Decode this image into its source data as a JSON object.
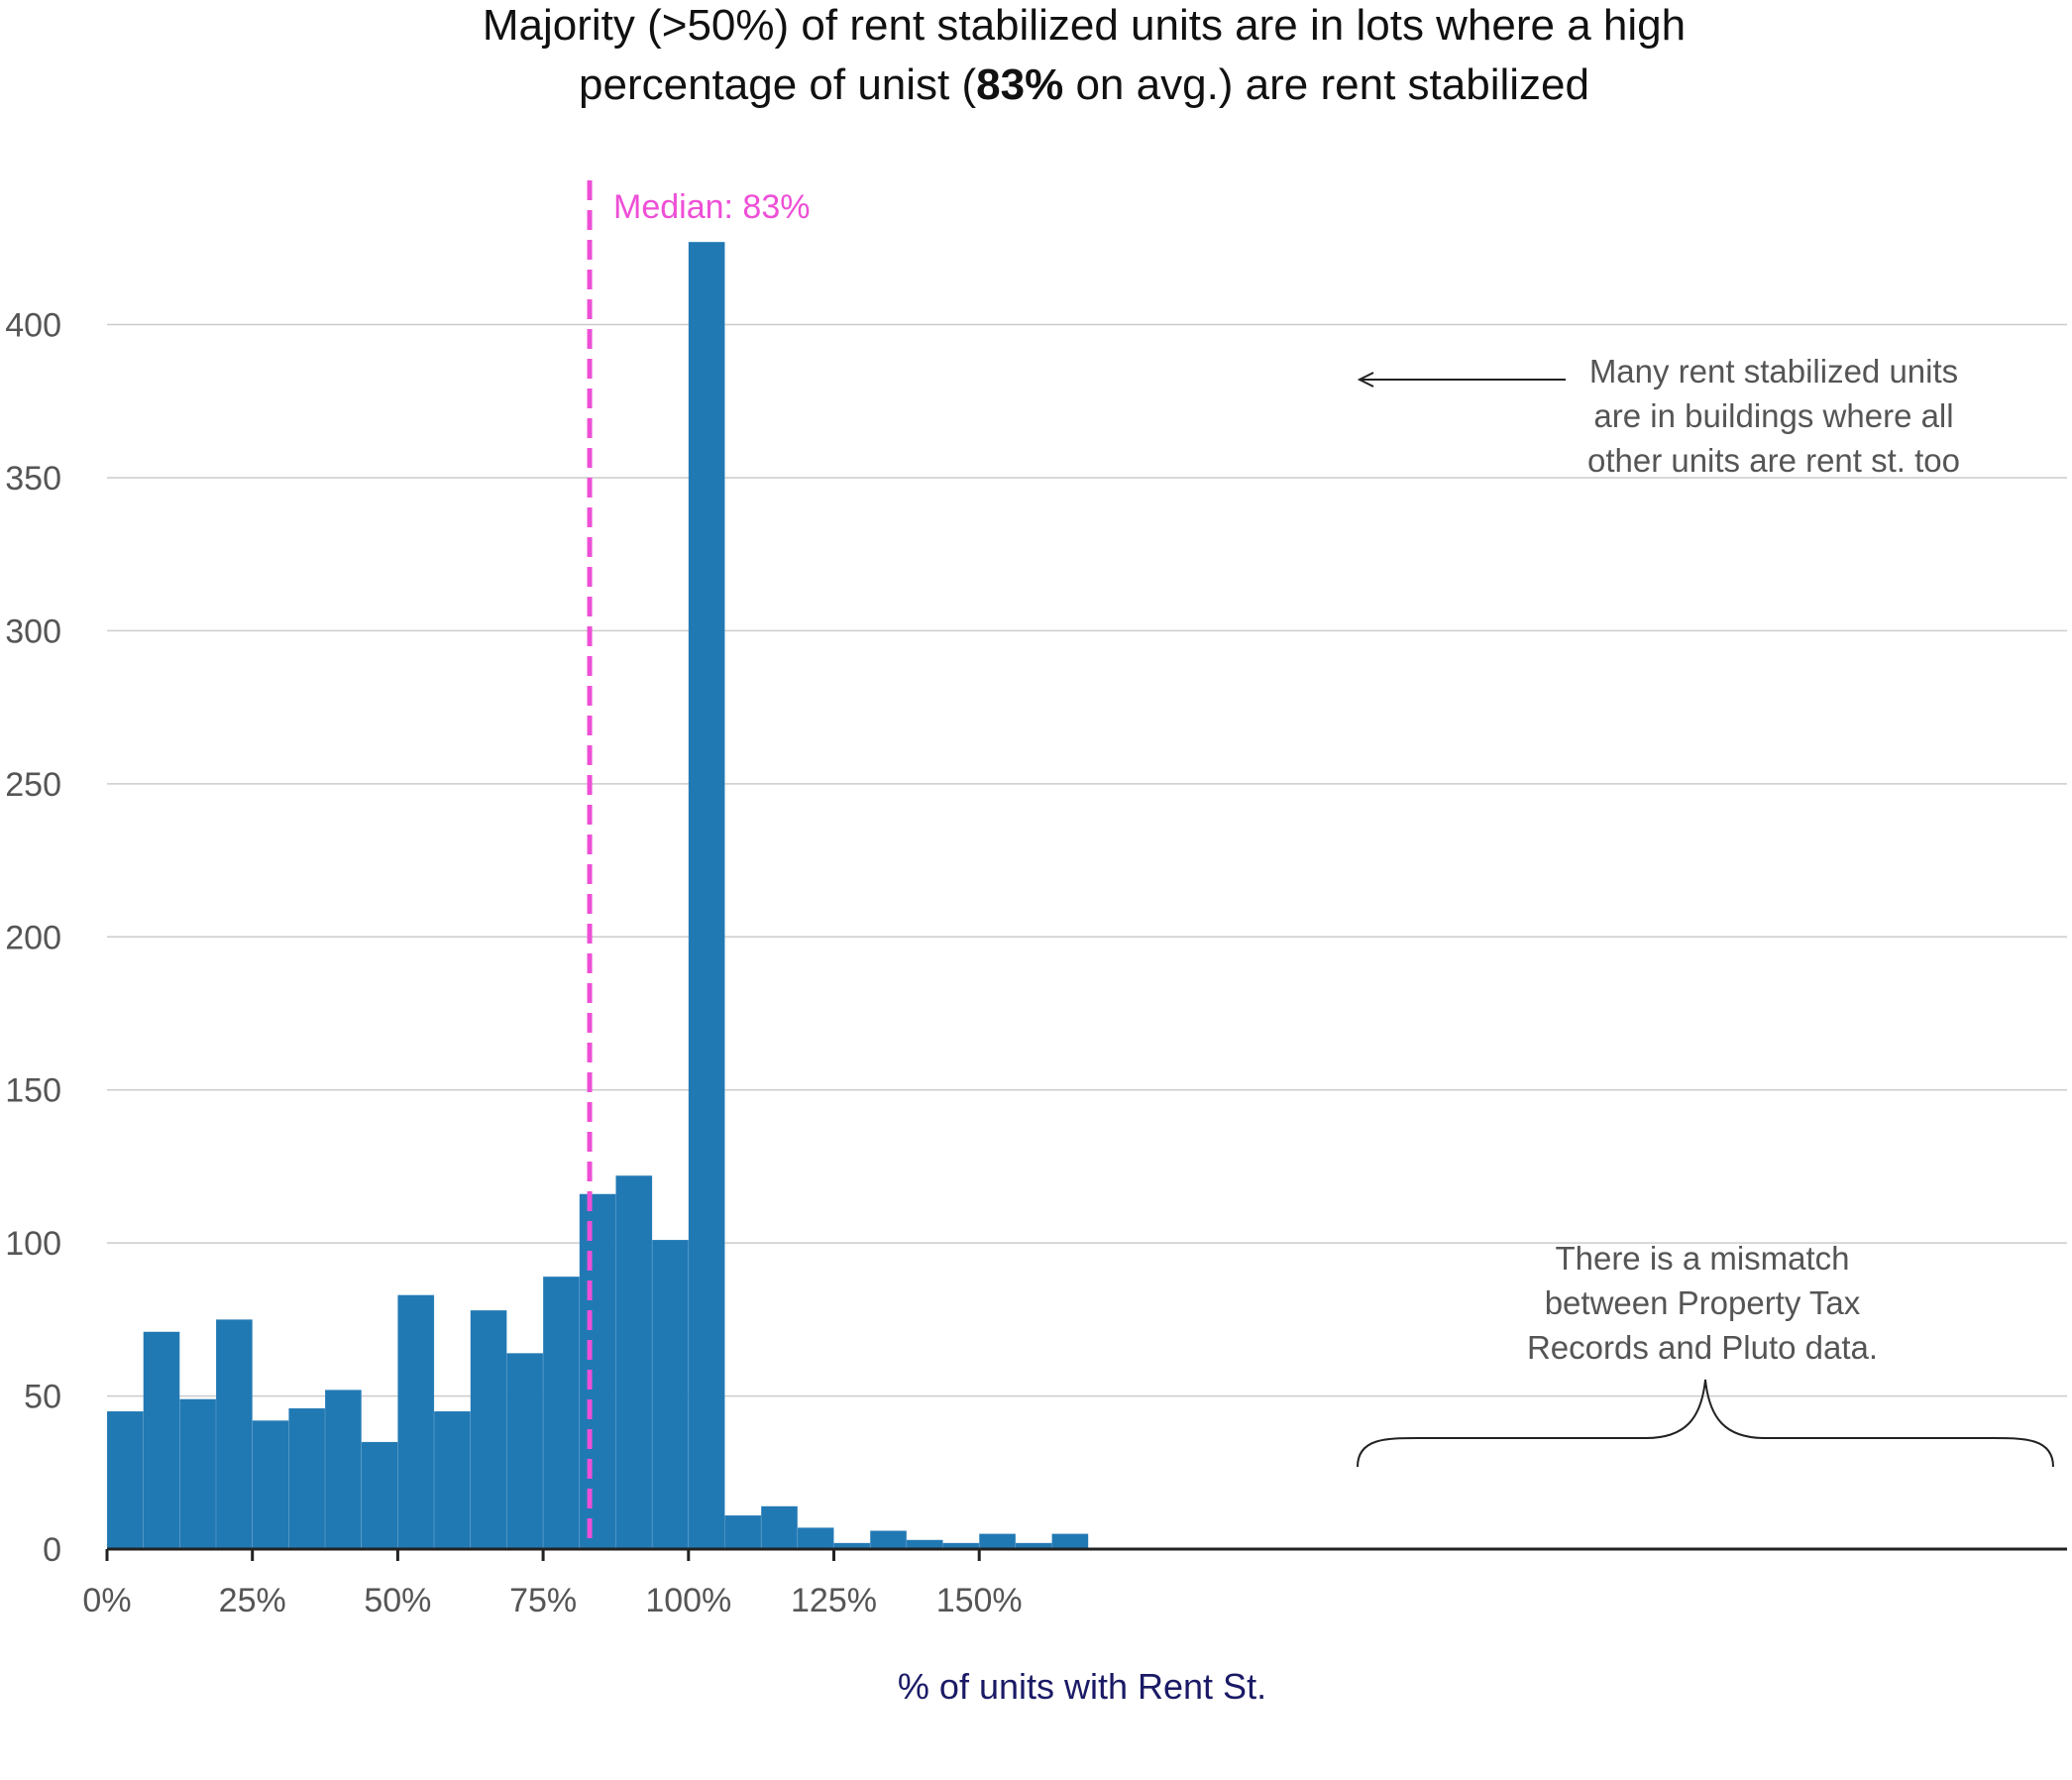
{
  "chart_data": {
    "type": "bar",
    "title_line1": "Majority (>50%) of rent stabilized units are in lots where a high",
    "title_line2_pre": "percentage of unist (",
    "title_line2_bold": "83%",
    "title_line2_post": " on avg.) are rent stabilized",
    "xlabel": "% of units with Rent St.",
    "ylabel": "",
    "x_unit": "percent",
    "bin_width": 6.25,
    "bins_start": [
      0.0,
      6.25,
      12.5,
      18.75,
      25.0,
      31.25,
      37.5,
      43.75,
      50.0,
      56.25,
      62.5,
      68.75,
      75.0,
      81.25,
      87.5,
      93.75,
      100.0,
      106.25,
      112.5,
      118.75,
      125.0,
      131.25,
      137.5,
      143.75,
      150.0,
      156.25,
      162.5
    ],
    "values": [
      45,
      71,
      49,
      75,
      42,
      46,
      52,
      35,
      83,
      45,
      78,
      64,
      89,
      116,
      122,
      101,
      427,
      11,
      14,
      7,
      2,
      6,
      3,
      2,
      5,
      2,
      5
    ],
    "xlim": [
      0,
      168.75
    ],
    "ylim": [
      0,
      440
    ],
    "x_ticks": [
      0,
      25,
      50,
      75,
      100,
      125,
      150
    ],
    "x_tick_labels": [
      "0%",
      "25%",
      "50%",
      "75%",
      "100%",
      "125%",
      "150%"
    ],
    "y_ticks": [
      0,
      50,
      100,
      150,
      200,
      250,
      300,
      350,
      400
    ],
    "y_tick_labels": [
      "0",
      "50",
      "100",
      "150",
      "200",
      "250",
      "300",
      "350",
      "400"
    ],
    "grid": true,
    "median_value": 83,
    "median_label": "Median: 83%",
    "annotations": {
      "spike_note": [
        "Many rent stabilized units",
        "are in buildings where all",
        "other units are rent st. too"
      ],
      "mismatch_note": [
        "There is a mismatch",
        "between Property Tax",
        "Records and Pluto data."
      ]
    }
  },
  "colors": {
    "bar": "#2179b4",
    "median": "#ee4fd6",
    "grid": "#cccccc",
    "axis": "#222222",
    "xlabel": "#1a1a66"
  }
}
